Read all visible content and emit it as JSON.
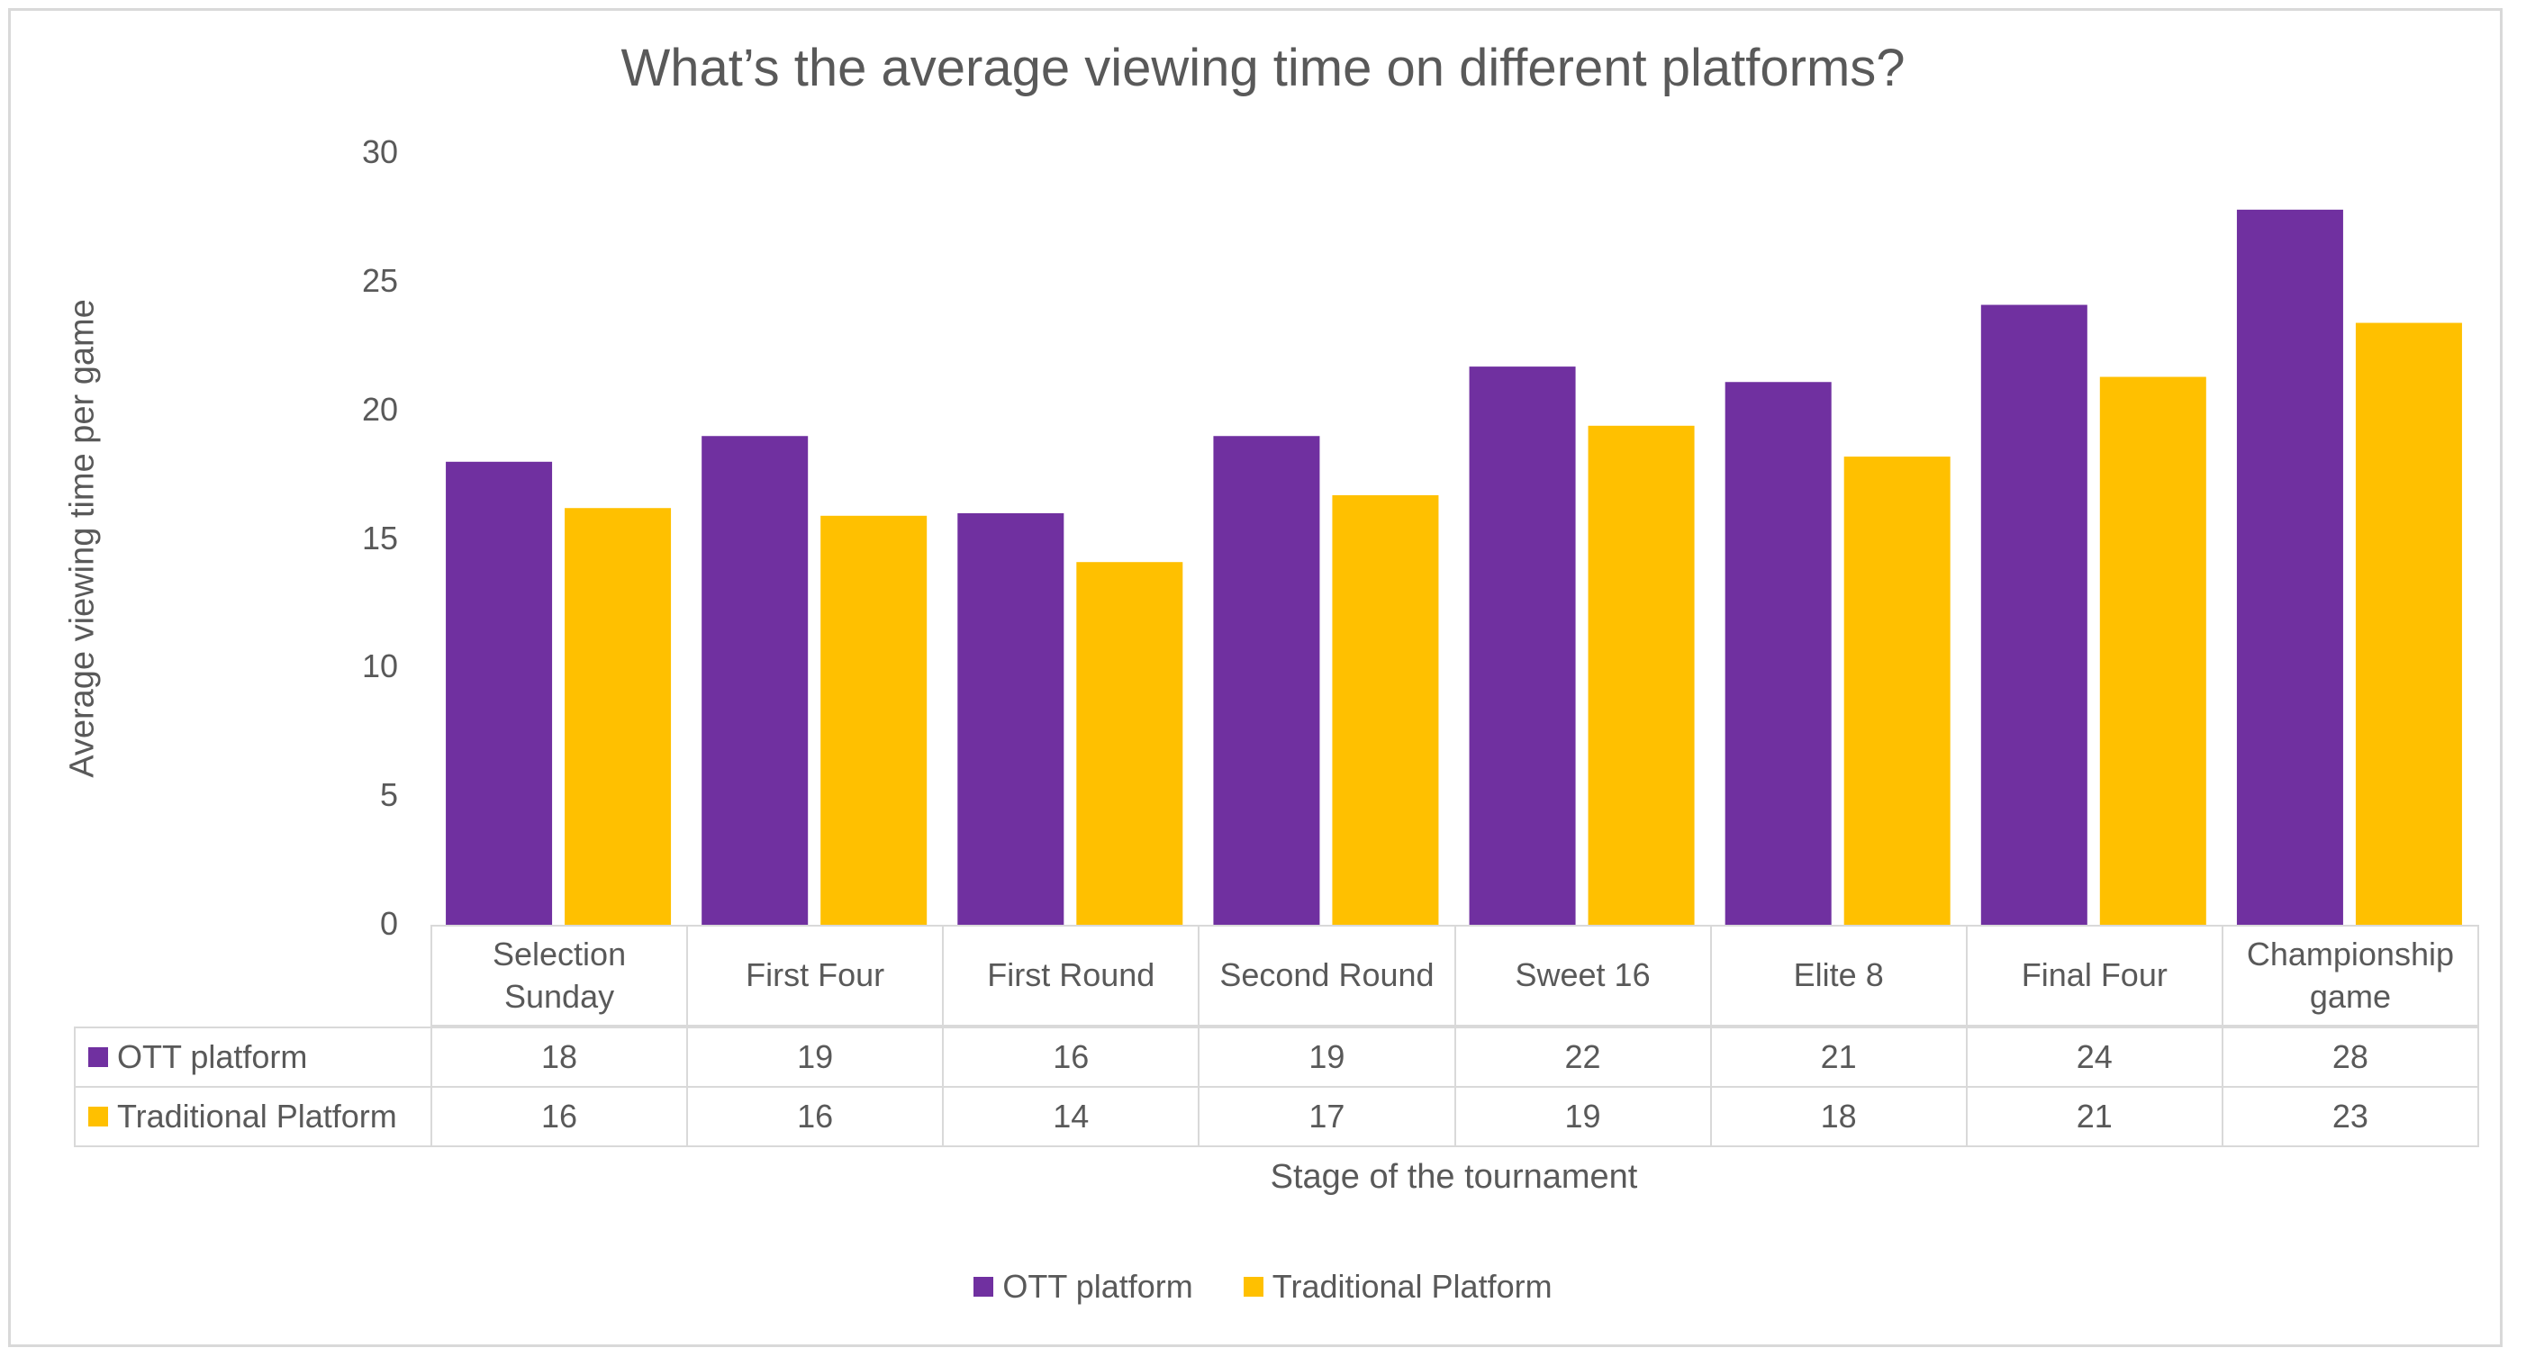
{
  "colors": {
    "ott": "#7030A0",
    "traditional": "#FFC000",
    "text": "#595959",
    "grid_border": "#D9D9D9"
  },
  "chart_data": {
    "type": "bar",
    "title": "What’s the average viewing time on different platforms?",
    "xlabel": "Stage of the tournament",
    "ylabel": "Average viewing time per game",
    "ylim": [
      0,
      30
    ],
    "yticks": [
      0,
      5,
      10,
      15,
      20,
      25,
      30
    ],
    "grid": false,
    "legend_position": "bottom",
    "categories": [
      "Selection Sunday",
      "First Four",
      "First Round",
      "Second Round",
      "Sweet 16",
      "Elite 8",
      "Final Four",
      "Championship game"
    ],
    "category_lines": [
      [
        "Selection",
        "Sunday"
      ],
      [
        "First Four"
      ],
      [
        "First Round"
      ],
      [
        "Second Round"
      ],
      [
        "Sweet 16"
      ],
      [
        "Elite 8"
      ],
      [
        "Final Four"
      ],
      [
        "Championship",
        "game"
      ]
    ],
    "series": [
      {
        "name": "OTT platform",
        "color": "#7030A0",
        "values": [
          18.0,
          19.0,
          16.0,
          19.0,
          21.7,
          21.1,
          24.1,
          27.8
        ],
        "table_values": [
          "18",
          "19",
          "16",
          "19",
          "22",
          "21",
          "24",
          "28"
        ]
      },
      {
        "name": "Traditional Platform",
        "color": "#FFC000",
        "values": [
          16.2,
          15.9,
          14.1,
          16.7,
          19.4,
          18.2,
          21.3,
          23.4
        ],
        "table_values": [
          "16",
          "16",
          "14",
          "17",
          "19",
          "18",
          "21",
          "23"
        ]
      }
    ],
    "data_table": true
  }
}
